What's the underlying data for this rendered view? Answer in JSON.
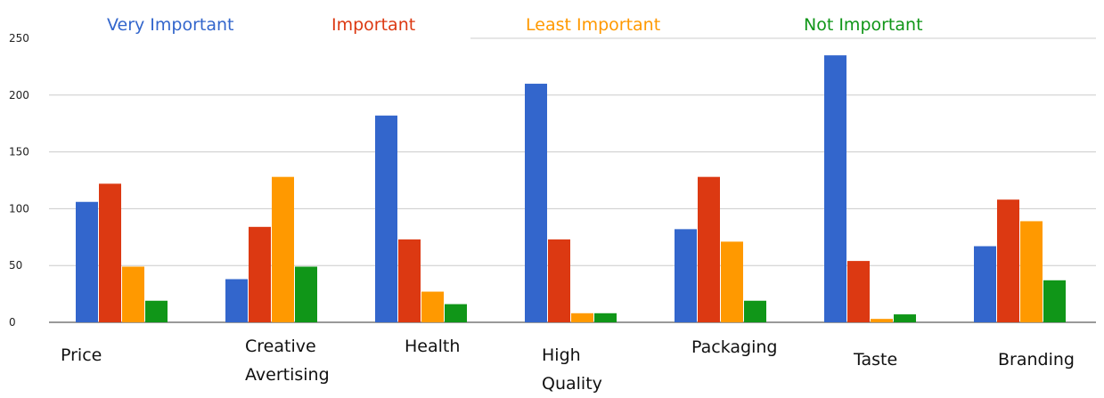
{
  "chart_data": {
    "type": "bar",
    "categories": [
      [
        "Price"
      ],
      [
        "Creative",
        "Avertising"
      ],
      [
        "Health"
      ],
      [
        "High",
        "Quality"
      ],
      [
        "Packaging"
      ],
      [
        "Taste"
      ],
      [
        "Branding"
      ]
    ],
    "series": [
      {
        "name": "Very Important",
        "color": "#3366cc",
        "values": [
          106,
          38,
          182,
          210,
          82,
          235,
          67
        ]
      },
      {
        "name": "Important",
        "color": "#dc3912",
        "values": [
          122,
          84,
          73,
          73,
          128,
          54,
          108
        ]
      },
      {
        "name": "Least Important",
        "color": "#ff9900",
        "values": [
          49,
          128,
          27,
          8,
          71,
          3,
          89
        ]
      },
      {
        "name": "Not Important",
        "color": "#109618",
        "values": [
          19,
          49,
          16,
          8,
          19,
          7,
          37
        ]
      }
    ],
    "ylim": [
      0,
      250
    ],
    "yticks": [
      0,
      50,
      100,
      150,
      200,
      250
    ],
    "grid": true,
    "legend_position": "top"
  }
}
